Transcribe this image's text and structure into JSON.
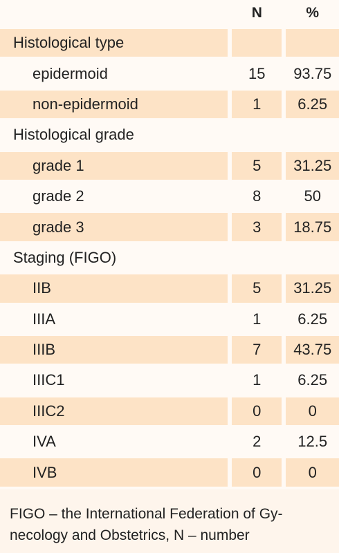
{
  "table": {
    "header": {
      "n": "N",
      "pct": "%"
    },
    "rows": [
      [
        "Histological type"
      ],
      [
        "epidermoid",
        15,
        93.75
      ],
      [
        "non-epidermoid",
        1,
        6.25
      ],
      [
        "Histological grade"
      ],
      [
        "grade 1",
        5,
        31.25
      ],
      [
        "grade 2",
        8,
        50
      ],
      [
        "grade 3",
        3,
        18.75
      ],
      [
        "Staging (FIGO)"
      ],
      [
        "IIB",
        5,
        31.25
      ],
      [
        "IIIA",
        1,
        6.25
      ],
      [
        "IIIB",
        7,
        43.75
      ],
      [
        "IIIC1",
        1,
        6.25
      ],
      [
        "IIIC2",
        0,
        0
      ],
      [
        "IVA",
        2,
        12.5
      ],
      [
        "IVB",
        0,
        0
      ]
    ]
  },
  "footnote": [
    "FIGO – the International Federation of Gy-",
    "necology and Obstetrics, N – number"
  ]
}
